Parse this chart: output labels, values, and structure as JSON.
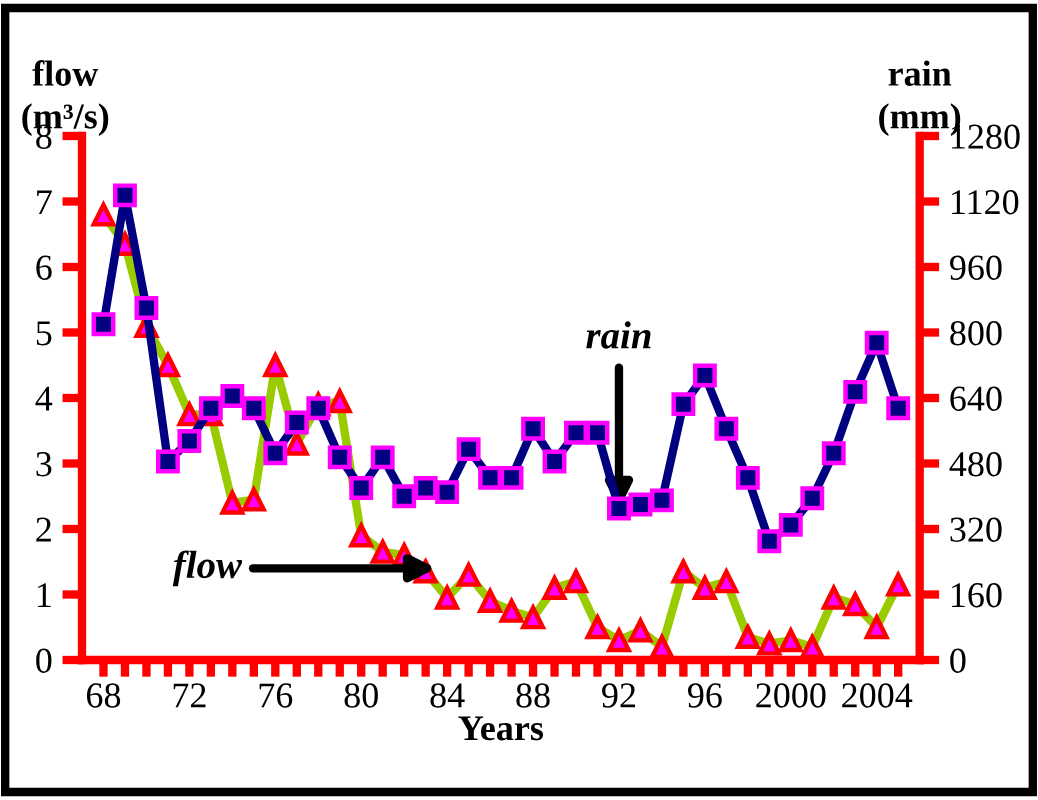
{
  "chart_data": {
    "type": "line",
    "xlabel": "Years",
    "ylabel": "flow\n(m³/s)",
    "y2label": "rain\n(mm)",
    "x": [
      1968,
      1969,
      1970,
      1971,
      1972,
      1973,
      1974,
      1975,
      1976,
      1977,
      1978,
      1979,
      1980,
      1981,
      1982,
      1983,
      1984,
      1985,
      1986,
      1987,
      1988,
      1989,
      1990,
      1991,
      1992,
      1993,
      1994,
      1995,
      1996,
      1997,
      1998,
      1999,
      2000,
      2001,
      2002,
      2003,
      2004,
      2005
    ],
    "series": [
      {
        "color": "#99cc00",
        "marker": "triangle",
        "values": [
          6.8,
          6.35,
          5.1,
          4.5,
          3.75,
          3.75,
          2.4,
          2.45,
          4.5,
          3.3,
          3.9,
          3.95,
          1.9,
          1.65,
          1.6,
          1.35,
          0.95,
          1.3,
          0.9,
          0.75,
          0.65,
          1.1,
          1.2,
          0.5,
          0.3,
          0.45,
          0.2,
          1.35,
          1.1,
          1.2,
          0.35,
          0.25,
          0.3,
          0.2,
          0.95,
          0.85,
          0.5,
          1.15
        ]
      },
      {
        "color": "#000080",
        "marker": "square",
        "axis": "y2",
        "values": [
          820,
          1135,
          860,
          485,
          535,
          615,
          645,
          615,
          505,
          580,
          615,
          495,
          420,
          495,
          400,
          420,
          410,
          515,
          445,
          445,
          565,
          485,
          555,
          555,
          370,
          380,
          390,
          625,
          695,
          565,
          445,
          290,
          330,
          395,
          505,
          655,
          775,
          615
        ]
      }
    ],
    "xlim": [
      1967,
      2006
    ],
    "xticks": [
      {
        "value": 1968,
        "label": "68"
      },
      {
        "value": 1969,
        "label": null
      },
      {
        "value": 1970,
        "label": null
      },
      {
        "value": 1971,
        "label": null
      },
      {
        "value": 1972,
        "label": "72"
      },
      {
        "value": 1973,
        "label": null
      },
      {
        "value": 1974,
        "label": null
      },
      {
        "value": 1975,
        "label": null
      },
      {
        "value": 1976,
        "label": "76"
      },
      {
        "value": 1977,
        "label": null
      },
      {
        "value": 1978,
        "label": null
      },
      {
        "value": 1979,
        "label": null
      },
      {
        "value": 1980,
        "label": "80"
      },
      {
        "value": 1981,
        "label": null
      },
      {
        "value": 1982,
        "label": null
      },
      {
        "value": 1983,
        "label": null
      },
      {
        "value": 1984,
        "label": "84"
      },
      {
        "value": 1985,
        "label": null
      },
      {
        "value": 1986,
        "label": null
      },
      {
        "value": 1987,
        "label": null
      },
      {
        "value": 1988,
        "label": "88"
      },
      {
        "value": 1989,
        "label": null
      },
      {
        "value": 1990,
        "label": null
      },
      {
        "value": 1991,
        "label": null
      },
      {
        "value": 1992,
        "label": "92"
      },
      {
        "value": 1993,
        "label": null
      },
      {
        "value": 1994,
        "label": null
      },
      {
        "value": 1995,
        "label": null
      },
      {
        "value": 1996,
        "label": "96"
      },
      {
        "value": 1997,
        "label": null
      },
      {
        "value": 1998,
        "label": null
      },
      {
        "value": 1999,
        "label": null
      },
      {
        "value": 2000,
        "label": "2000"
      },
      {
        "value": 2001,
        "label": null
      },
      {
        "value": 2002,
        "label": null
      },
      {
        "value": 2003,
        "label": null
      },
      {
        "value": 2004,
        "label": "2004"
      },
      {
        "value": 2005,
        "label": null
      }
    ],
    "ylim": [
      0,
      8
    ],
    "yticks": [
      0,
      1,
      2,
      3,
      4,
      5,
      6,
      7,
      8
    ],
    "y2lim": [
      0,
      1280
    ],
    "y2ticks": [
      0,
      160,
      320,
      480,
      640,
      800,
      960,
      1120,
      1280
    ],
    "annotations": [
      {
        "text": "rain",
        "x": 1992,
        "y": 2.3
      },
      {
        "text": "flow",
        "x": 1983.5,
        "y": 1.4
      }
    ],
    "grid": false,
    "legend": false
  }
}
